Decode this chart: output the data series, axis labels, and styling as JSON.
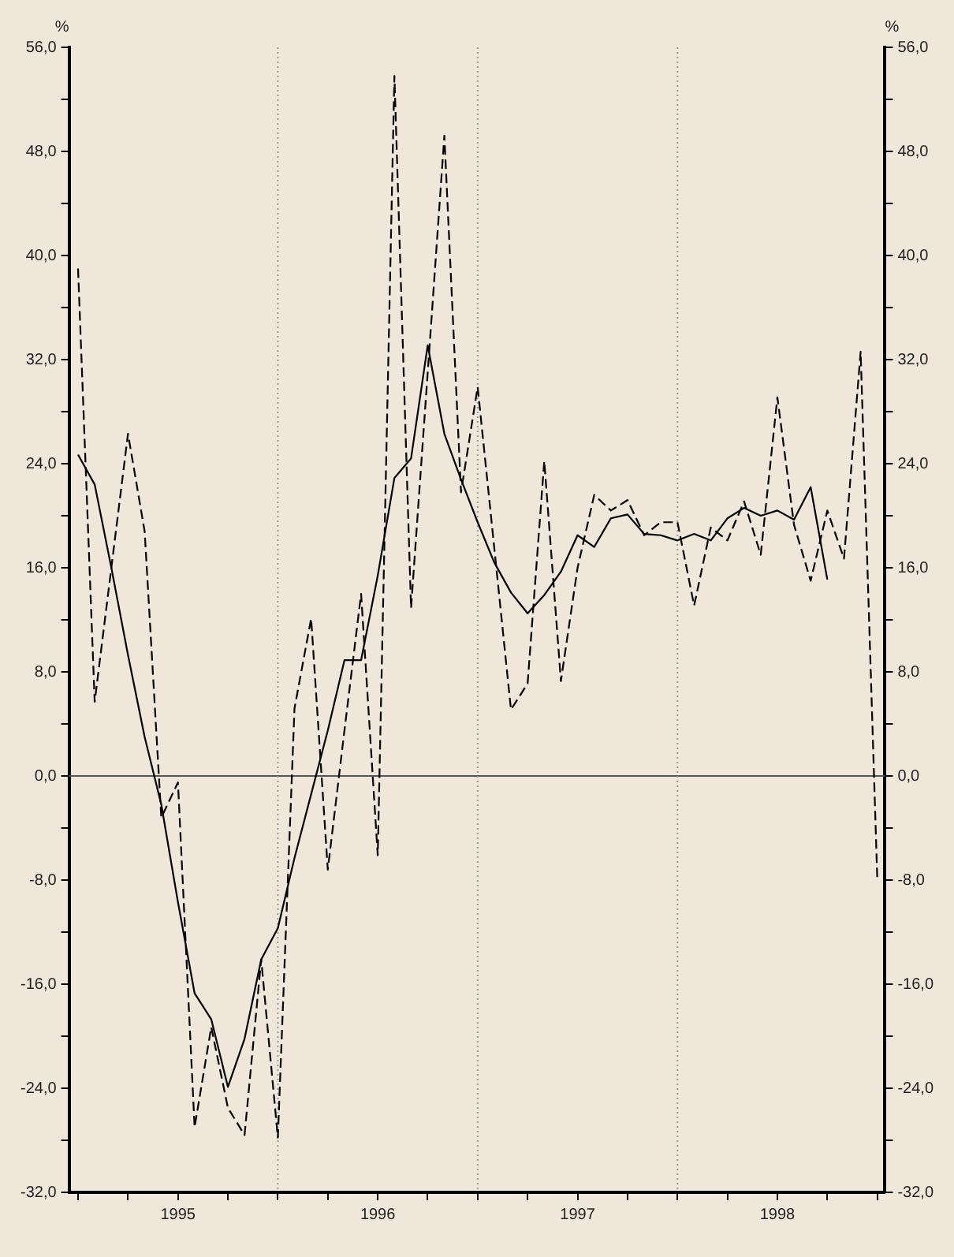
{
  "chart_data": {
    "type": "line",
    "ylabel": "%",
    "y2label": "%",
    "x": [
      "1995-01",
      "1995-02",
      "1995-03",
      "1995-04",
      "1995-05",
      "1995-06",
      "1995-07",
      "1995-08",
      "1995-09",
      "1995-10",
      "1995-11",
      "1995-12",
      "1996-01",
      "1996-02",
      "1996-03",
      "1996-04",
      "1996-05",
      "1996-06",
      "1996-07",
      "1996-08",
      "1996-09",
      "1996-10",
      "1996-11",
      "1996-12",
      "1997-01",
      "1997-02",
      "1997-03",
      "1997-04",
      "1997-05",
      "1997-06",
      "1997-07",
      "1997-08",
      "1997-09",
      "1997-10",
      "1997-11",
      "1997-12",
      "1998-01",
      "1998-02",
      "1998-03",
      "1998-04",
      "1998-05",
      "1998-06",
      "1998-07",
      "1998-08",
      "1998-09",
      "1998-10",
      "1998-11",
      "1998-12",
      "1999-01"
    ],
    "series": [
      {
        "color": "#000000",
        "line_style": "dashed",
        "values": [
          39,
          5.7,
          16,
          26.3,
          18.8,
          -3.2,
          -0.5,
          -27,
          -19.3,
          -25.5,
          -27.6,
          -14.1,
          -27.8,
          5.2,
          12.1,
          -7.2,
          3.5,
          14,
          -6.1,
          53.8,
          12.9,
          31,
          49.2,
          21.8,
          29.9,
          17.5,
          5.1,
          7.1,
          24.2,
          7.3,
          16,
          21.6,
          20.4,
          21.2,
          18.5,
          19.5,
          19.5,
          13.1,
          19.1,
          18.1,
          21.1,
          17,
          29.1,
          19.3,
          15,
          20.4,
          16.7,
          32.6,
          -7.9
        ]
      },
      {
        "color": "#000000",
        "line_style": "solid",
        "values": [
          24.7,
          22.4,
          16,
          9.3,
          3,
          -2.2,
          -9.7,
          -16.7,
          -18.7,
          -23.9,
          -20.2,
          -14.1,
          -11.7,
          -6.3,
          -1.4,
          3.5,
          8.9,
          8.9,
          15.4,
          22.9,
          24.4,
          33.1,
          26.3,
          22.8,
          19.5,
          16.4,
          14.1,
          12.5,
          13.9,
          15.7,
          18.5,
          17.6,
          19.8,
          20.1,
          18.6,
          18.5,
          18.1,
          18.6,
          18.1,
          19.8,
          20.6,
          20,
          20.4,
          19.7,
          22.2,
          15.1,
          null,
          null,
          null
        ]
      }
    ],
    "xlim": [
      "1994-12-15",
      "1999-01-15"
    ],
    "xticks": [
      {
        "value": "1995-01",
        "label": null
      },
      {
        "value": "1995-04",
        "label": null
      },
      {
        "value": "1995-07",
        "label": "1995"
      },
      {
        "value": "1995-10",
        "label": null
      },
      {
        "value": "1996-01",
        "label": null
      },
      {
        "value": "1996-04",
        "label": null
      },
      {
        "value": "1996-07",
        "label": "1996"
      },
      {
        "value": "1996-10",
        "label": null
      },
      {
        "value": "1997-01",
        "label": null
      },
      {
        "value": "1997-04",
        "label": null
      },
      {
        "value": "1997-07",
        "label": "1997"
      },
      {
        "value": "1997-10",
        "label": null
      },
      {
        "value": "1998-01",
        "label": null
      },
      {
        "value": "1998-04",
        "label": null
      },
      {
        "value": "1998-07",
        "label": "1998"
      },
      {
        "value": "1998-10",
        "label": null
      },
      {
        "value": "1999-01",
        "label": null
      }
    ],
    "ylim": [
      -32,
      56
    ],
    "yticks": [
      {
        "value": -32,
        "label": "-32,0"
      },
      {
        "value": -28,
        "label": null
      },
      {
        "value": -24,
        "label": "-24,0"
      },
      {
        "value": -20,
        "label": null
      },
      {
        "value": -16,
        "label": "-16,0"
      },
      {
        "value": -12,
        "label": null
      },
      {
        "value": -8,
        "label": "-8,0"
      },
      {
        "value": -4,
        "label": null
      },
      {
        "value": 0,
        "label": "0,0"
      },
      {
        "value": 4,
        "label": null
      },
      {
        "value": 8,
        "label": "8,0"
      },
      {
        "value": 12,
        "label": null
      },
      {
        "value": 16,
        "label": "16,0"
      },
      {
        "value": 20,
        "label": null
      },
      {
        "value": 24,
        "label": "24,0"
      },
      {
        "value": 28,
        "label": null
      },
      {
        "value": 32,
        "label": "32,0"
      },
      {
        "value": 36,
        "label": null
      },
      {
        "value": 40,
        "label": "40,0"
      },
      {
        "value": 44,
        "label": null
      },
      {
        "value": 48,
        "label": "48,0"
      },
      {
        "value": 52,
        "label": null
      },
      {
        "value": 56,
        "label": "56,0"
      }
    ],
    "y2lim": [
      -32,
      56
    ],
    "y2ticks": [
      {
        "value": -32,
        "label": "-32,0"
      },
      {
        "value": -28,
        "label": null
      },
      {
        "value": -24,
        "label": "-24,0"
      },
      {
        "value": -20,
        "label": null
      },
      {
        "value": -16,
        "label": "-16,0"
      },
      {
        "value": -12,
        "label": null
      },
      {
        "value": -8,
        "label": "-8,0"
      },
      {
        "value": -4,
        "label": null
      },
      {
        "value": 0,
        "label": "0,0"
      },
      {
        "value": 4,
        "label": null
      },
      {
        "value": 8,
        "label": "8,0"
      },
      {
        "value": 12,
        "label": null
      },
      {
        "value": 16,
        "label": "16,0"
      },
      {
        "value": 20,
        "label": null
      },
      {
        "value": 24,
        "label": "24,0"
      },
      {
        "value": 28,
        "label": null
      },
      {
        "value": 32,
        "label": "32,0"
      },
      {
        "value": 36,
        "label": null
      },
      {
        "value": 40,
        "label": "40,0"
      },
      {
        "value": 44,
        "label": null
      },
      {
        "value": 48,
        "label": "48,0"
      },
      {
        "value": 52,
        "label": null
      },
      {
        "value": 56,
        "label": "56,0"
      }
    ],
    "ref_lines": [
      {
        "axis": "y",
        "value": 0,
        "color": "#555555",
        "line_style": "solid"
      },
      {
        "axis": "x",
        "value": "1996-01",
        "color": "#999999",
        "line_style": "dotted"
      },
      {
        "axis": "x",
        "value": "1997-01",
        "color": "#999999",
        "line_style": "dotted"
      },
      {
        "axis": "x",
        "value": "1998-01",
        "color": "#999999",
        "line_style": "dotted"
      }
    ]
  }
}
